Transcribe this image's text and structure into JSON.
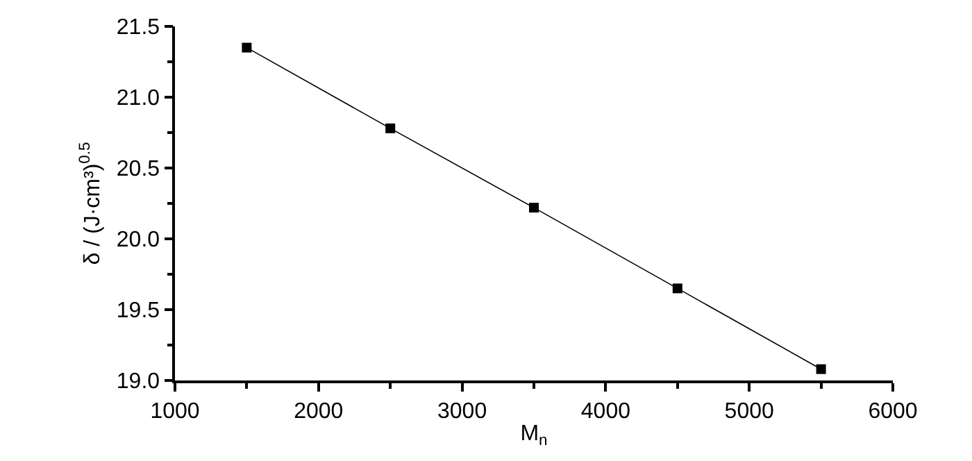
{
  "chart_data": {
    "type": "line",
    "xlabel": "M$_{n}$",
    "ylabel": "δ / (J·cm³)$^{0.5}$",
    "x": [
      1500,
      2500,
      3500,
      4500,
      5500
    ],
    "series": [
      {
        "color": "#000000",
        "values": [
          21.35,
          20.78,
          20.22,
          19.65,
          19.08
        ]
      }
    ],
    "marker": "square",
    "line_style": "solid",
    "legend": false,
    "xlim": [
      1000,
      6000
    ],
    "xticks": [
      1000,
      {
        "value": 1500,
        "label": null
      },
      2000,
      {
        "value": 2500,
        "label": null
      },
      3000,
      {
        "value": 3500,
        "label": null
      },
      4000,
      {
        "value": 4500,
        "label": null
      },
      5000,
      {
        "value": 5500,
        "label": null
      },
      6000
    ],
    "ylim": [
      19.0,
      21.5
    ],
    "yticks": [
      {
        "value": 19.0,
        "label": "19.0"
      },
      {
        "value": 19.25,
        "label": null
      },
      {
        "value": 19.5,
        "label": "19.5"
      },
      {
        "value": 19.75,
        "label": null
      },
      {
        "value": 20.0,
        "label": "20.0"
      },
      {
        "value": 20.25,
        "label": null
      },
      {
        "value": 20.5,
        "label": "20.5"
      },
      {
        "value": 20.75,
        "label": null
      },
      {
        "value": 21.0,
        "label": "21.0"
      },
      {
        "value": 21.25,
        "label": null
      },
      {
        "value": 21.5,
        "label": "21.5"
      }
    ]
  }
}
